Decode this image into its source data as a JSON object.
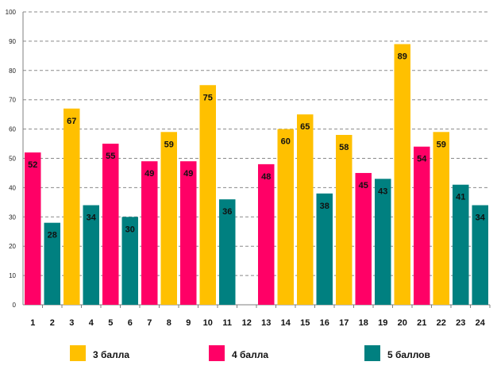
{
  "chart_data": {
    "type": "bar",
    "title": "",
    "xlabel": "",
    "ylabel": "",
    "ylim": [
      0,
      100
    ],
    "ytick_step": 10,
    "grid": true,
    "categories": [
      "1",
      "2",
      "3",
      "4",
      "5",
      "6",
      "7",
      "8",
      "9",
      "10",
      "11",
      "12",
      "13",
      "14",
      "15",
      "16",
      "17",
      "18",
      "19",
      "20",
      "21",
      "22",
      "23",
      "24"
    ],
    "values": [
      52,
      28,
      67,
      34,
      55,
      30,
      49,
      59,
      49,
      75,
      36,
      null,
      48,
      60,
      65,
      38,
      58,
      45,
      43,
      89,
      54,
      59,
      41,
      34
    ],
    "value_labels": [
      "52",
      "28",
      "67",
      "34",
      "55",
      "30",
      "49",
      "59",
      "49",
      "75",
      "36",
      "",
      "48",
      "60",
      "65",
      "38",
      "58",
      "45",
      "43",
      "89",
      "54",
      "59",
      "41",
      "34"
    ],
    "groups": [
      "4",
      "5",
      "3",
      "5",
      "4",
      "5",
      "4",
      "3",
      "4",
      "3",
      "5",
      "",
      "4",
      "3",
      "3",
      "5",
      "3",
      "4",
      "5",
      "3",
      "4",
      "3",
      "5",
      "5"
    ],
    "series": [
      {
        "key": "3",
        "name": "3 балла",
        "color": "#FFC000"
      },
      {
        "key": "4",
        "name": "4 балла",
        "color": "#FF0066"
      },
      {
        "key": "5",
        "name": "5 баллов",
        "color": "#008080"
      }
    ],
    "legend_position": "bottom"
  }
}
